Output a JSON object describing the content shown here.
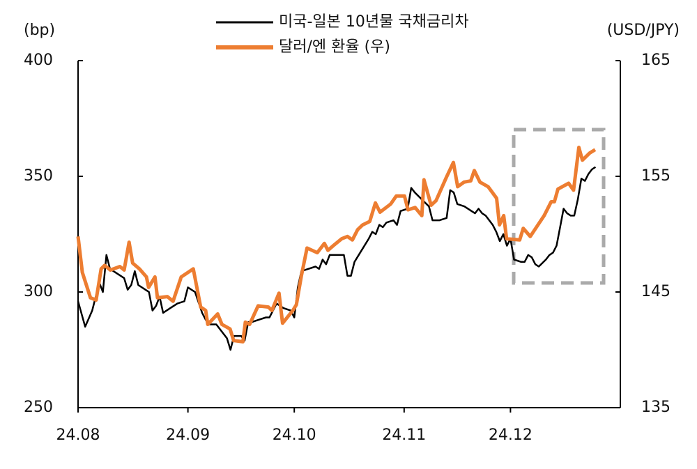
{
  "chart_data": {
    "type": "line",
    "legend": "top",
    "ylabel": "(bp)",
    "y2label": "(USD/JPY)",
    "xlim": [
      0,
      153
    ],
    "xticks": [
      {
        "value": 0,
        "label": "24.08"
      },
      {
        "value": 31,
        "label": "24.09"
      },
      {
        "value": 61,
        "label": "24.10"
      },
      {
        "value": 92,
        "label": "24.11"
      },
      {
        "value": 122,
        "label": "24.12"
      }
    ],
    "ylim": [
      250,
      400
    ],
    "yticks": [
      250,
      300,
      350,
      400
    ],
    "y2lim": [
      135,
      165
    ],
    "y2ticks": [
      135,
      145,
      155,
      165
    ],
    "series": [
      {
        "name": "미국-일본 10년물 국채금리차",
        "color": "#000000",
        "axis": "y",
        "x": [
          0,
          2,
          4,
          5,
          6,
          7,
          8,
          9,
          11,
          13,
          14,
          15,
          16,
          17,
          19,
          20,
          21,
          22,
          23,
          24,
          26,
          28,
          30,
          31,
          33,
          35,
          36,
          37,
          39,
          41,
          42,
          43,
          44,
          46,
          47,
          48,
          49,
          51,
          53,
          54,
          56,
          58,
          60,
          61,
          62,
          63,
          65,
          67,
          68,
          69,
          70,
          71,
          73,
          75,
          76,
          77,
          78,
          80,
          82,
          83,
          84,
          85,
          86,
          87,
          89,
          90,
          91,
          93,
          94,
          95,
          97,
          99,
          100,
          102,
          104,
          105,
          106,
          107,
          109,
          111,
          112,
          113,
          114,
          115,
          117,
          118,
          119,
          120,
          121,
          122,
          123,
          125,
          126,
          127,
          128,
          129,
          130,
          132,
          133,
          134,
          135,
          136,
          137,
          138,
          139,
          140,
          141,
          142,
          143,
          144,
          145,
          146
        ],
        "values": [
          296,
          285,
          292,
          298,
          304,
          300,
          316,
          310,
          308,
          306,
          301,
          303,
          309,
          303,
          301,
          300,
          292,
          294,
          298,
          291,
          293,
          295,
          296,
          302,
          300,
          291,
          288,
          286,
          286,
          282,
          280,
          275,
          281,
          281,
          279,
          287,
          287,
          288,
          289,
          289,
          295,
          293,
          292,
          289,
          302,
          309,
          310,
          311,
          310,
          314,
          312,
          316,
          316,
          316,
          307,
          307,
          313,
          318,
          323,
          326,
          325,
          329,
          328,
          330,
          331,
          329,
          335,
          336,
          345,
          343,
          340,
          337,
          331,
          331,
          332,
          344,
          343,
          338,
          337,
          335,
          334,
          336,
          334,
          333,
          329,
          326,
          322,
          325,
          320,
          323,
          314,
          313,
          313,
          316,
          315,
          312,
          311,
          314,
          316,
          317,
          320,
          328,
          336,
          334,
          333,
          333,
          340,
          349,
          348,
          351,
          353,
          354
        ]
      },
      {
        "name": "달러/엔 환율 (우)",
        "color": "#ed7d31",
        "axis": "y2",
        "x": [
          0,
          1.2,
          3.5,
          5.1,
          6.5,
          7.5,
          9.1,
          11.8,
          13.0,
          14.4,
          15.4,
          17.3,
          19.3,
          19.9,
          21.7,
          22.4,
          25.2,
          26.8,
          29.1,
          32.5,
          34.6,
          36.0,
          36.6,
          39.4,
          40.6,
          42.9,
          43.9,
          46.5,
          47.2,
          48.4,
          50.8,
          53.7,
          54.7,
          56.7,
          57.7,
          60.6,
          61.6,
          63.0,
          64.6,
          67.5,
          69.5,
          70.5,
          72.0,
          74.4,
          76.0,
          77.4,
          78.9,
          80.3,
          82.3,
          83.9,
          85.2,
          88.2,
          89.8,
          92.1,
          93.1,
          95.1,
          97.0,
          97.6,
          99.6,
          101.0,
          103.9,
          105.9,
          107.1,
          108.9,
          110.8,
          111.8,
          113.4,
          115.7,
          118.1,
          118.9,
          120.1,
          120.9,
          124.6,
          125.6,
          127.6,
          131.5,
          133.5,
          134.4,
          135.4,
          138.4,
          139.8,
          141.3,
          142.3,
          144.3,
          145.9
        ],
        "values": [
          149.8,
          146.7,
          144.5,
          144.3,
          147.0,
          147.3,
          146.9,
          147.2,
          146.9,
          149.3,
          147.5,
          147.0,
          146.3,
          145.4,
          146.3,
          144.5,
          144.6,
          144.2,
          146.3,
          147.0,
          143.7,
          143.4,
          142.2,
          143.1,
          142.2,
          141.8,
          140.8,
          140.7,
          142.4,
          142.2,
          143.8,
          143.7,
          143.4,
          144.9,
          142.3,
          143.4,
          143.9,
          146.4,
          148.8,
          148.4,
          149.2,
          148.6,
          149.0,
          149.6,
          149.8,
          149.5,
          150.4,
          150.8,
          151.1,
          152.7,
          151.9,
          152.6,
          153.3,
          153.3,
          152.1,
          152.3,
          151.6,
          154.7,
          152.5,
          152.9,
          154.9,
          156.2,
          154.1,
          154.5,
          154.6,
          155.5,
          154.5,
          154.1,
          153.1,
          150.8,
          151.6,
          149.6,
          149.5,
          150.5,
          149.8,
          151.6,
          152.8,
          152.8,
          153.9,
          154.4,
          153.8,
          157.5,
          156.4,
          157.0,
          157.3
        ]
      }
    ]
  }
}
